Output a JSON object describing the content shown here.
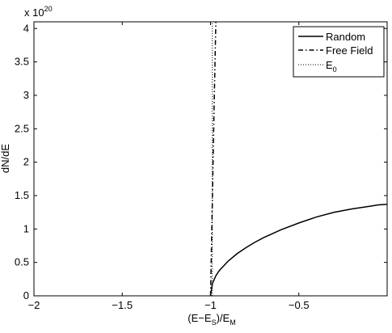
{
  "chart_data": {
    "type": "line",
    "title": "",
    "xlabel": {
      "base": "(E−E",
      "sub1": "S",
      "mid": ")/E",
      "sub2": "M"
    },
    "ylabel": "dN/dE",
    "y_scale_factor": {
      "base": "x 10",
      "exponent": "20"
    },
    "xlim": [
      -2,
      0
    ],
    "ylim": [
      0,
      4.1
    ],
    "xticks": [
      -2,
      -1.5,
      -1,
      -0.5
    ],
    "xtick_labels": [
      "−2",
      "−1.5",
      "−1",
      "−0.5"
    ],
    "yticks": [
      0,
      0.5,
      1,
      1.5,
      2,
      2.5,
      3,
      3.5,
      4
    ],
    "ytick_labels": [
      "0",
      "0.5",
      "1",
      "1.5",
      "2",
      "2.5",
      "3",
      "3.5",
      "4"
    ],
    "grid": false,
    "legend": {
      "placement": "top-right"
    },
    "series": [
      {
        "name": "Random",
        "style": "solid",
        "x": [
          -1.0,
          -0.99,
          -0.97,
          -0.95,
          -0.9,
          -0.85,
          -0.8,
          -0.75,
          -0.7,
          -0.6,
          -0.5,
          -0.4,
          -0.3,
          -0.2,
          -0.1,
          -0.05,
          0.0
        ],
        "y": [
          0.0,
          0.18,
          0.3,
          0.38,
          0.52,
          0.63,
          0.72,
          0.8,
          0.87,
          0.99,
          1.09,
          1.18,
          1.25,
          1.3,
          1.34,
          1.36,
          1.37
        ]
      },
      {
        "name": "Free Field",
        "style": "dash-dot",
        "x": [
          -1.0,
          -0.99,
          -0.98,
          -0.97
        ],
        "y": [
          0.0,
          1.4,
          2.8,
          4.1
        ]
      },
      {
        "name": {
          "base": "E",
          "sub": "0"
        },
        "style": "dotted",
        "x": [
          -0.99,
          -0.99
        ],
        "y": [
          0.0,
          4.1
        ]
      }
    ],
    "colors": {
      "line": "#000000",
      "background": "#ffffff"
    }
  }
}
